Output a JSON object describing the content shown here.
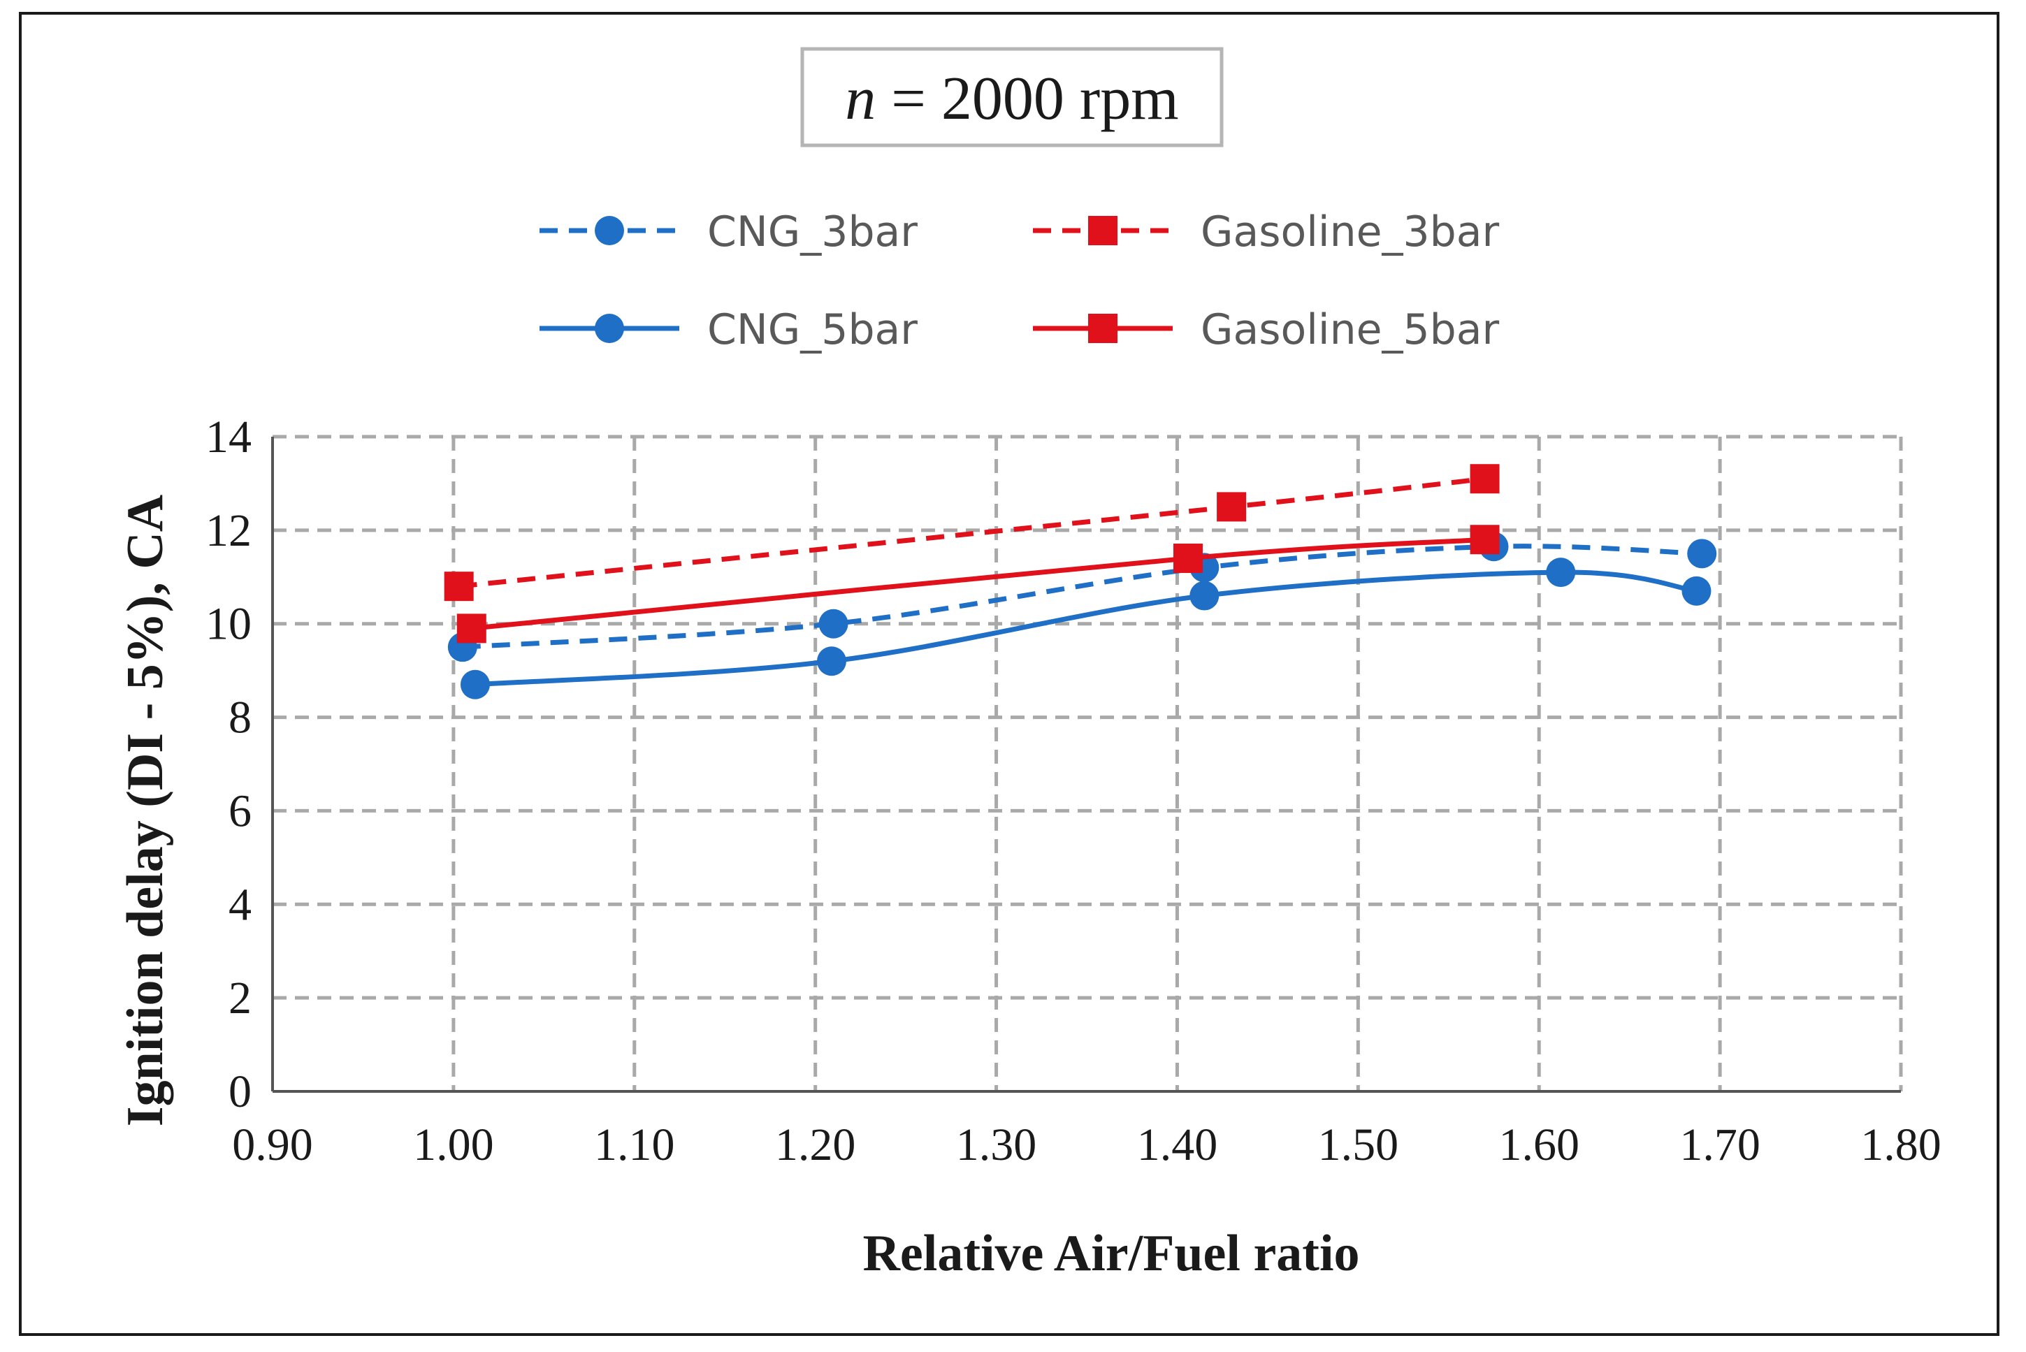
{
  "chart_data": {
    "type": "line",
    "annotation": {
      "italic": "n",
      "text": " = 2000 rpm"
    },
    "xlabel": "Relative Air/Fuel ratio",
    "ylabel": "Ignition delay (DI - 5%), CA",
    "xlim": [
      0.9,
      1.8
    ],
    "ylim": [
      0,
      14
    ],
    "xticks": [
      0.9,
      1.0,
      1.1,
      1.2,
      1.3,
      1.4,
      1.5,
      1.6,
      1.7,
      1.8
    ],
    "xtick_labels": [
      "0.90",
      "1.00",
      "1.10",
      "1.20",
      "1.30",
      "1.40",
      "1.50",
      "1.60",
      "1.70",
      "1.80"
    ],
    "yticks": [
      0,
      2,
      4,
      6,
      8,
      10,
      12,
      14
    ],
    "ytick_labels": [
      "0",
      "2",
      "4",
      "6",
      "8",
      "10",
      "12",
      "14"
    ],
    "grid": true,
    "legend_position": "top",
    "series": [
      {
        "name": "CNG_3bar",
        "color": "#1F6FC6",
        "dash": true,
        "marker": "circle",
        "x": [
          1.005,
          1.21,
          1.415,
          1.575,
          1.69
        ],
        "y": [
          9.5,
          10.0,
          11.2,
          11.65,
          11.5
        ]
      },
      {
        "name": "Gasoline_3bar",
        "color": "#E0111A",
        "dash": true,
        "marker": "square",
        "x": [
          1.003,
          1.43,
          1.57
        ],
        "y": [
          10.8,
          12.5,
          13.1
        ]
      },
      {
        "name": "CNG_5bar",
        "color": "#1F6FC6",
        "dash": false,
        "marker": "circle",
        "x": [
          1.012,
          1.209,
          1.415,
          1.612,
          1.687
        ],
        "y": [
          8.7,
          9.2,
          10.6,
          11.1,
          10.7
        ]
      },
      {
        "name": "Gasoline_5bar",
        "color": "#E0111A",
        "dash": false,
        "marker": "square",
        "x": [
          1.01,
          1.406,
          1.57
        ],
        "y": [
          9.9,
          11.4,
          11.8
        ]
      }
    ]
  }
}
